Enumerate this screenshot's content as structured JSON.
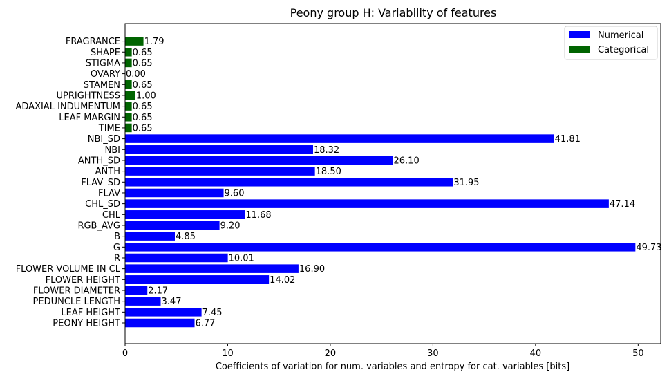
{
  "chart_data": {
    "type": "bar",
    "orientation": "horizontal",
    "title": "Peony group H: Variability of features",
    "xlabel": "Coefficients of variation for num. variables and entropy for cat. variables [bits]",
    "ylabel": "",
    "xlim": [
      0,
      52.2
    ],
    "xticks": [
      0,
      10,
      20,
      30,
      40,
      50
    ],
    "grid": false,
    "legend_position": "top-right",
    "colors": {
      "Numerical": "#0000ff",
      "Categorical": "#006400"
    },
    "series": [
      {
        "name": "Numerical"
      },
      {
        "name": "Categorical"
      }
    ],
    "bars": [
      {
        "category": "PEONY HEIGHT",
        "value": 6.77,
        "label": "6.77",
        "series": "Numerical"
      },
      {
        "category": "LEAF HEIGHT",
        "value": 7.45,
        "label": "7.45",
        "series": "Numerical"
      },
      {
        "category": "PEDUNCLE LENGTH",
        "value": 3.47,
        "label": "3.47",
        "series": "Numerical"
      },
      {
        "category": "FLOWER DIAMETER",
        "value": 2.17,
        "label": "2.17",
        "series": "Numerical"
      },
      {
        "category": "FLOWER HEIGHT",
        "value": 14.02,
        "label": "14.02",
        "series": "Numerical"
      },
      {
        "category": "FLOWER VOLUME IN CL",
        "value": 16.9,
        "label": "16.90",
        "series": "Numerical"
      },
      {
        "category": "R",
        "value": 10.01,
        "label": "10.01",
        "series": "Numerical"
      },
      {
        "category": "G",
        "value": 49.73,
        "label": "49.73",
        "series": "Numerical"
      },
      {
        "category": "B",
        "value": 4.85,
        "label": "4.85",
        "series": "Numerical"
      },
      {
        "category": "RGB_AVG",
        "value": 9.2,
        "label": "9.20",
        "series": "Numerical"
      },
      {
        "category": "CHL",
        "value": 11.68,
        "label": "11.68",
        "series": "Numerical"
      },
      {
        "category": "CHL_SD",
        "value": 47.14,
        "label": "47.14",
        "series": "Numerical"
      },
      {
        "category": "FLAV",
        "value": 9.6,
        "label": "9.60",
        "series": "Numerical"
      },
      {
        "category": "FLAV_SD",
        "value": 31.95,
        "label": "31.95",
        "series": "Numerical"
      },
      {
        "category": "ANTH",
        "value": 18.5,
        "label": "18.50",
        "series": "Numerical"
      },
      {
        "category": "ANTH_SD",
        "value": 26.1,
        "label": "26.10",
        "series": "Numerical"
      },
      {
        "category": "NBI",
        "value": 18.32,
        "label": "18.32",
        "series": "Numerical"
      },
      {
        "category": "NBI_SD",
        "value": 41.81,
        "label": "41.81",
        "series": "Numerical"
      },
      {
        "category": "TIME",
        "value": 0.65,
        "label": "0.65",
        "series": "Categorical"
      },
      {
        "category": "LEAF MARGIN",
        "value": 0.65,
        "label": "0.65",
        "series": "Categorical"
      },
      {
        "category": "ADAXIAL INDUMENTUM",
        "value": 0.65,
        "label": "0.65",
        "series": "Categorical"
      },
      {
        "category": "UPRIGHTNESS",
        "value": 1.0,
        "label": "1.00",
        "series": "Categorical"
      },
      {
        "category": "STAMEN",
        "value": 0.65,
        "label": "0.65",
        "series": "Categorical"
      },
      {
        "category": "OVARY",
        "value": 0.0,
        "label": "0.00",
        "series": "Categorical"
      },
      {
        "category": "STIGMA",
        "value": 0.65,
        "label": "0.65",
        "series": "Categorical"
      },
      {
        "category": "SHAPE",
        "value": 0.65,
        "label": "0.65",
        "series": "Categorical"
      },
      {
        "category": "FRAGRANCE",
        "value": 1.79,
        "label": "1.79",
        "series": "Categorical"
      }
    ]
  }
}
